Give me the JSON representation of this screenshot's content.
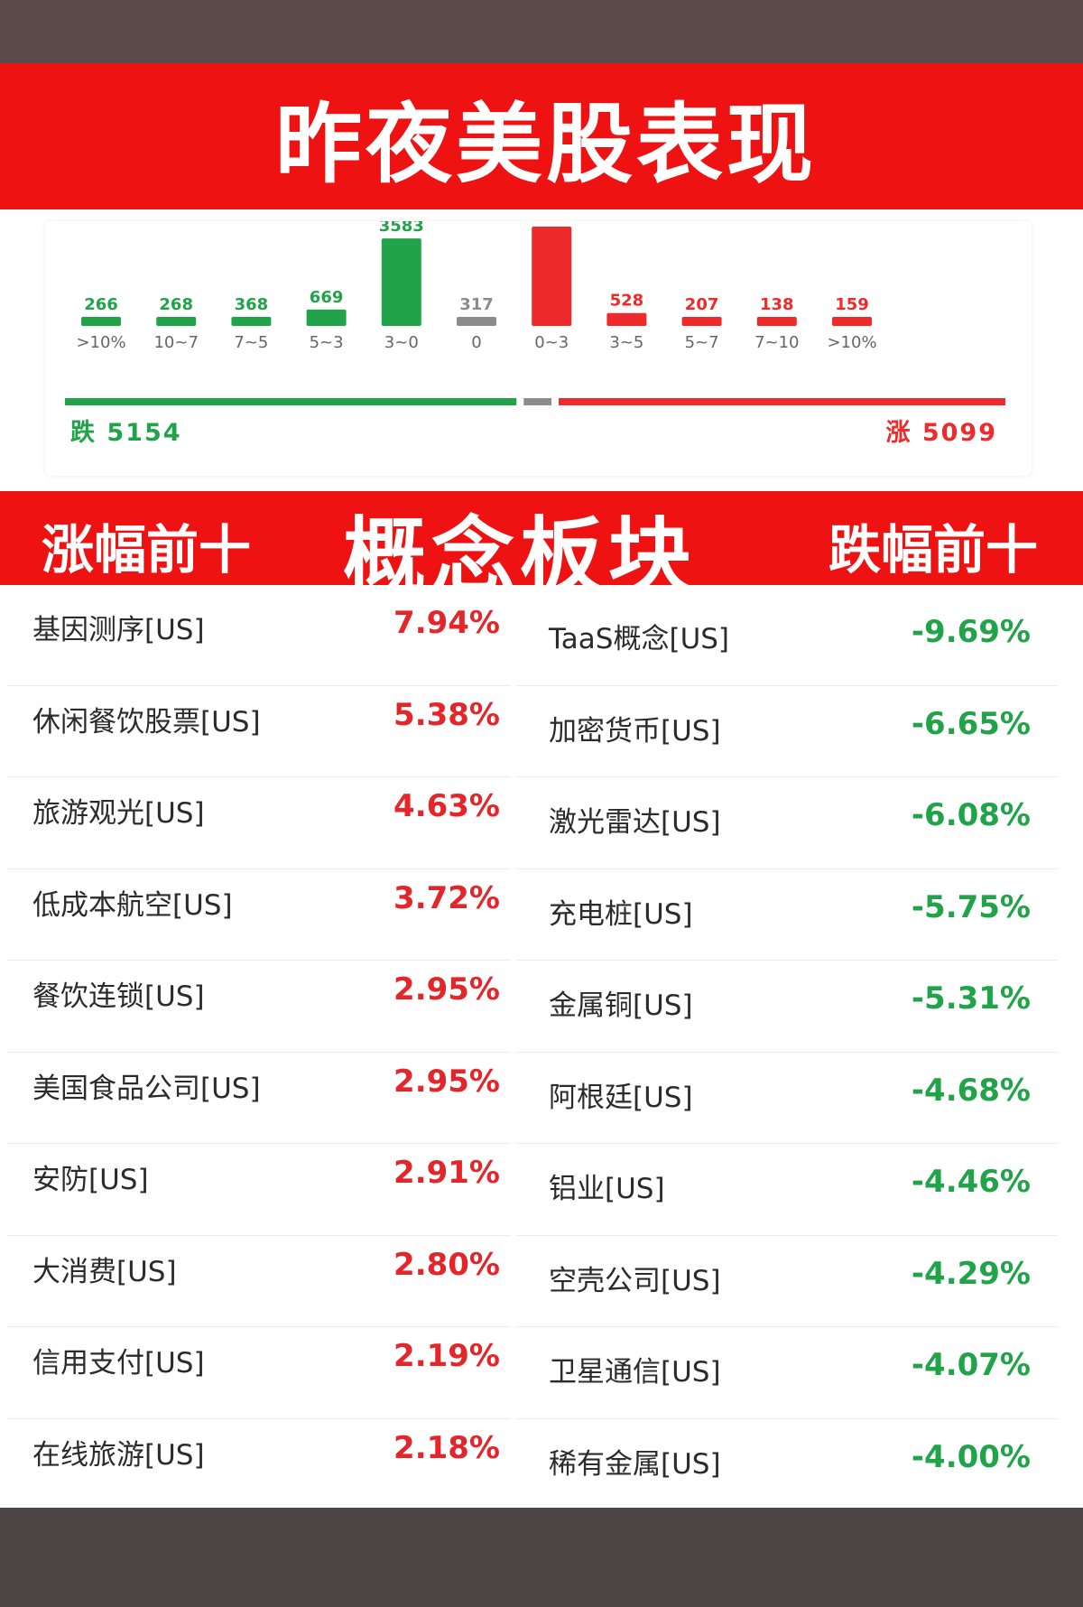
{
  "title": "昨夜美股表现",
  "chart_data": {
    "type": "bar",
    "categories": [
      ">10%",
      "10~7",
      "7~5",
      "5~3",
      "3~0",
      "0",
      "0~3",
      "3~5",
      "5~7",
      "7~10",
      ">10%"
    ],
    "values": [
      266,
      268,
      368,
      669,
      3583,
      317,
      4067,
      528,
      207,
      138,
      159
    ],
    "bar_colors": [
      "#21a34a",
      "#21a34a",
      "#21a34a",
      "#21a34a",
      "#21a34a",
      "#8c8c8c",
      "#ee2a2a",
      "#ee2a2a",
      "#ee2a2a",
      "#ee2a2a",
      "#ee2a2a"
    ],
    "title": "",
    "xlabel": "",
    "ylabel": "",
    "grid": false
  },
  "summary": {
    "fall": "跌 5154",
    "rise": "涨 5099",
    "fall_count": 5154,
    "flat_count": 317,
    "rise_count": 5099
  },
  "section": {
    "left_heading": "涨幅前十",
    "center_heading": "概念板块",
    "right_heading": "跌幅前十"
  },
  "gainers": [
    {
      "name": "基因测序[US]",
      "value": "7.94%"
    },
    {
      "name": "休闲餐饮股票[US]",
      "value": "5.38%"
    },
    {
      "name": "旅游观光[US]",
      "value": "4.63%"
    },
    {
      "name": "低成本航空[US]",
      "value": "3.72%"
    },
    {
      "name": "餐饮连锁[US]",
      "value": "2.95%"
    },
    {
      "name": "美国食品公司[US]",
      "value": "2.95%"
    },
    {
      "name": "安防[US]",
      "value": "2.91%"
    },
    {
      "name": "大消费[US]",
      "value": "2.80%"
    },
    {
      "name": "信用支付[US]",
      "value": "2.19%"
    },
    {
      "name": "在线旅游[US]",
      "value": "2.18%"
    }
  ],
  "losers": [
    {
      "name": "TaaS概念[US]",
      "value": "-9.69%"
    },
    {
      "name": "加密货币[US]",
      "value": "-6.65%"
    },
    {
      "name": "激光雷达[US]",
      "value": "-6.08%"
    },
    {
      "name": "充电桩[US]",
      "value": "-5.75%"
    },
    {
      "name": "金属铜[US]",
      "value": "-5.31%"
    },
    {
      "name": "阿根廷[US]",
      "value": "-4.68%"
    },
    {
      "name": "铝业[US]",
      "value": "-4.46%"
    },
    {
      "name": "空壳公司[US]",
      "value": "-4.29%"
    },
    {
      "name": "卫星通信[US]",
      "value": "-4.07%"
    },
    {
      "name": "稀有金属[US]",
      "value": "-4.00%"
    }
  ]
}
